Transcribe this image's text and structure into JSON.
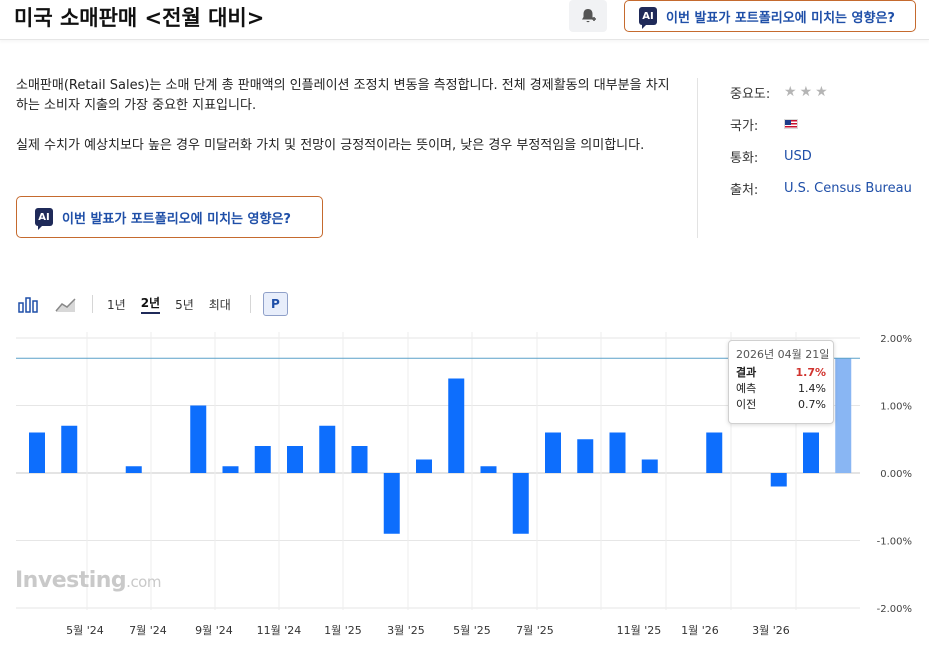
{
  "header": {
    "title": "미국 소매판매 <전월 대비>",
    "ai_button_label": "이번 발표가 포트폴리오에 미치는 영향은?"
  },
  "description": {
    "paragraphs": [
      "소매판매(Retail Sales)는 소매 단계 총 판매액의 인플레이션 조정치 변동을 측정합니다. 전체 경제활동의 대부분을 차지하는 소비자 지출의 가장 중요한 지표입니다.",
      "실제 수치가 예상치보다 높은 경우 미달러화 가치 및 전망이 긍정적이라는 뜻이며, 낮은 경우 부정적임을 의미합니다."
    ],
    "ai_button_label": "이번 발표가 포트폴리오에 미치는 영향은?"
  },
  "meta": {
    "importance_label": "중요도:",
    "importance_stars": 3,
    "country_label": "국가:",
    "country_flag": "us-flag-icon",
    "currency_label": "통화:",
    "currency_value": "USD",
    "source_label": "출처:",
    "source_value": "U.S. Census Bureau"
  },
  "toolbar": {
    "ranges": [
      "1년",
      "2년",
      "5년",
      "최대"
    ],
    "active_range": "2년",
    "p_label": "P"
  },
  "watermark": {
    "brand": "Investing",
    "suffix": ".com"
  },
  "chart_data": {
    "type": "bar",
    "unit": "%",
    "y_ticks": [
      "2.00%",
      "1.00%",
      "0.00%",
      "-1.00%",
      "-2.00%"
    ],
    "ylim": [
      -2,
      2
    ],
    "reference_line": 1.7,
    "x_tick_labels": [
      "5월 '24",
      "7월 '24",
      "9월 '24",
      "11월 '24",
      "1월 '25",
      "3월 '25",
      "5월 '25",
      "7월 '25",
      "11월 '25",
      "1월 '26",
      "3월 '26"
    ],
    "values": [
      0.6,
      0.7,
      null,
      0.1,
      null,
      1.0,
      0.1,
      0.4,
      0.4,
      0.7,
      0.4,
      -0.9,
      0.2,
      1.4,
      0.1,
      -0.9,
      0.6,
      0.5,
      0.6,
      0.2,
      null,
      0.6,
      null,
      -0.2,
      0.6,
      1.7
    ],
    "highlight_last": true,
    "colors": {
      "bar": "#0d6efd",
      "highlight": "#89b6f3",
      "line": "#5aa0c8"
    }
  },
  "tooltip": {
    "date": "2026년 04월 21일",
    "rows": [
      {
        "label": "결과",
        "value": "1.7%"
      },
      {
        "label": "예측",
        "value": "1.4%"
      },
      {
        "label": "이전",
        "value": "0.7%"
      }
    ]
  }
}
